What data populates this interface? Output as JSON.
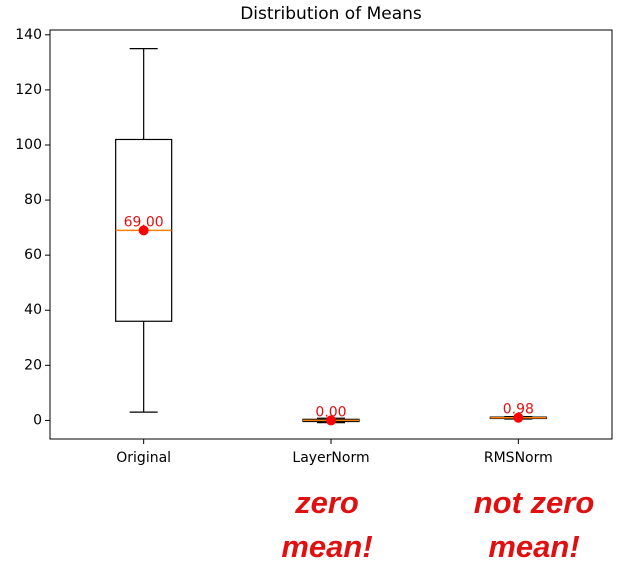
{
  "chart_data": {
    "type": "box",
    "title": "Distribution of Means",
    "categories": [
      "Original",
      "LayerNorm",
      "RMSNorm"
    ],
    "boxes": [
      {
        "whislo": 3,
        "q1": 36,
        "med": 69,
        "q3": 102,
        "whishi": 135
      },
      {
        "whislo": -0.8,
        "q1": -0.4,
        "med": 0,
        "q3": 0.4,
        "whishi": 0.8
      },
      {
        "whislo": 0.5,
        "q1": 0.7,
        "med": 0.98,
        "q3": 1.2,
        "whishi": 1.4
      }
    ],
    "values": [
      69,
      0,
      0.98
    ],
    "value_labels": [
      "69.00",
      "0.00",
      "0.98"
    ],
    "box_color": "#000000",
    "median_color": "#ff7f0e",
    "mean_color": "#ff0000",
    "ylim": [
      -6.75,
      141.75
    ],
    "yticks": [
      0,
      20,
      40,
      60,
      80,
      100,
      120,
      140
    ],
    "annotations": [
      [
        "zero",
        "mean!"
      ],
      [
        "not zero",
        "mean!"
      ]
    ]
  }
}
